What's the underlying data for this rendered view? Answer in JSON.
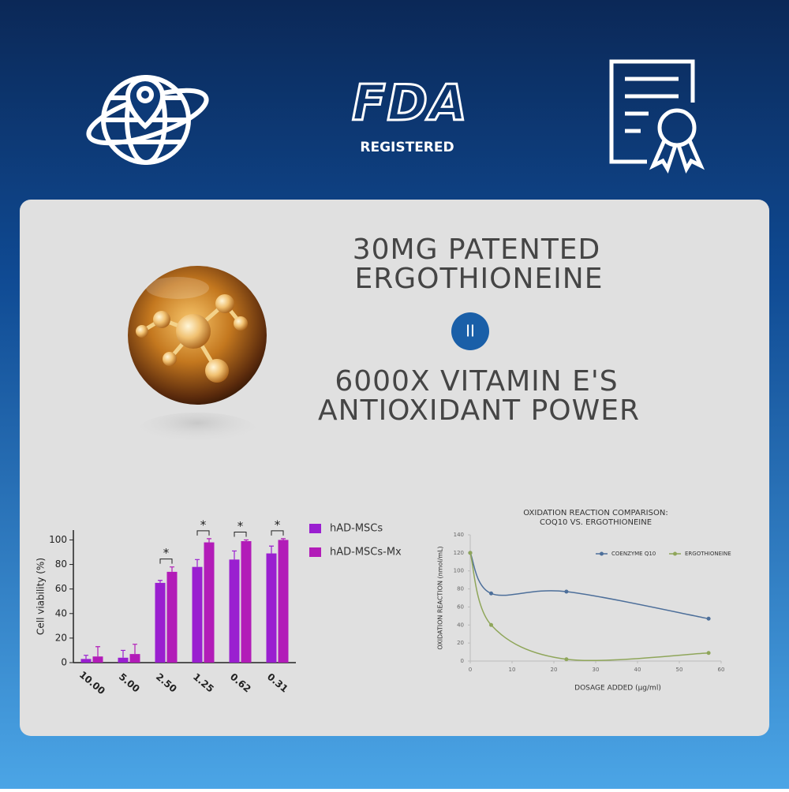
{
  "header": {
    "fda": "FDA",
    "registered": "REGISTERED"
  },
  "panel": {
    "headline": [
      "30MG PATENTED",
      "ERGOTHIONEINE"
    ],
    "equals": "II",
    "comparison": [
      "6000X VITAMIN E'S",
      "ANTIOXIDANT POWER"
    ]
  },
  "chart_data": [
    {
      "type": "bar",
      "y_label": "Cell viability (%)",
      "categories": [
        "10.00",
        "5.00",
        "2.50",
        "1.25",
        "0.62",
        "0.31"
      ],
      "series": [
        {
          "name": "hAD-MSCs",
          "color": "#9a1fd0",
          "values": [
            3,
            4,
            65,
            78,
            84,
            89
          ],
          "errors": [
            3,
            6,
            2,
            6,
            7,
            6
          ]
        },
        {
          "name": "hAD-MSCs-Mx",
          "color": "#b21cb8",
          "values": [
            5,
            7,
            74,
            98,
            99,
            100
          ],
          "errors": [
            8,
            8,
            4,
            3,
            1,
            1
          ]
        }
      ],
      "significance": [
        null,
        null,
        "*",
        "*",
        "*",
        "*"
      ],
      "ylim": [
        0,
        108
      ],
      "yticks": [
        0,
        20,
        40,
        60,
        80,
        100
      ]
    },
    {
      "type": "line",
      "title": [
        "OXIDATION REACTION COMPARISON:",
        "COQ10 VS. ERGOTHIONEINE"
      ],
      "x_label": "DOSAGE ADDED (μg/ml)",
      "y_label": "OXIDATION REACTION (nmol/mL)",
      "x": [
        0,
        5,
        23,
        57
      ],
      "series": [
        {
          "name": "COENZYME Q10",
          "color": "#4d6f9a",
          "values": [
            120,
            75,
            77,
            47
          ]
        },
        {
          "name": "ERGOTHIONEINE",
          "color": "#8fa65a",
          "values": [
            120,
            40,
            2,
            9
          ]
        }
      ],
      "xlim": [
        0,
        60
      ],
      "xticks": [
        0,
        10,
        20,
        30,
        40,
        50,
        60
      ],
      "ylim": [
        0,
        140
      ],
      "yticks": [
        0,
        20,
        40,
        60,
        80,
        100,
        120,
        140
      ]
    }
  ]
}
